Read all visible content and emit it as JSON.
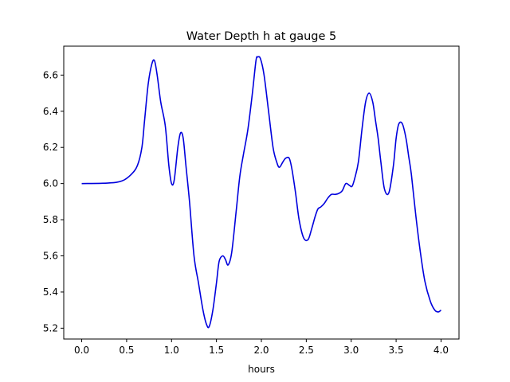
{
  "chart_data": {
    "type": "line",
    "title": "Water Depth h at gauge 5",
    "xlabel": "hours",
    "ylabel": "",
    "xlim": [
      -0.2,
      4.2
    ],
    "ylim": [
      5.14,
      6.76
    ],
    "grid": false,
    "xticks": [
      0.0,
      0.5,
      1.0,
      1.5,
      2.0,
      2.5,
      3.0,
      3.5,
      4.0
    ],
    "xtick_labels": [
      "0.0",
      "0.5",
      "1.0",
      "1.5",
      "2.0",
      "2.5",
      "3.0",
      "3.5",
      "4.0"
    ],
    "yticks": [
      5.2,
      5.4,
      5.6,
      5.8,
      6.0,
      6.2,
      6.4,
      6.6
    ],
    "ytick_labels": [
      "5.2",
      "5.4",
      "5.6",
      "5.8",
      "6.0",
      "6.2",
      "6.4",
      "6.6"
    ],
    "series": [
      {
        "color": "#0000dd",
        "x": [
          0.0,
          0.3,
          0.45,
          0.55,
          0.62,
          0.67,
          0.7,
          0.74,
          0.78,
          0.81,
          0.84,
          0.88,
          0.93,
          0.97,
          1.0,
          1.03,
          1.07,
          1.1,
          1.13,
          1.16,
          1.2,
          1.25,
          1.3,
          1.35,
          1.39,
          1.42,
          1.46,
          1.5,
          1.53,
          1.57,
          1.6,
          1.63,
          1.67,
          1.72,
          1.76,
          1.8,
          1.85,
          1.9,
          1.94,
          1.96,
          1.99,
          2.03,
          2.08,
          2.13,
          2.17,
          2.2,
          2.24,
          2.27,
          2.31,
          2.34,
          2.38,
          2.42,
          2.47,
          2.52,
          2.56,
          2.6,
          2.63,
          2.66,
          2.7,
          2.74,
          2.78,
          2.82,
          2.86,
          2.9,
          2.94,
          2.98,
          3.01,
          3.04,
          3.08,
          3.12,
          3.16,
          3.2,
          3.24,
          3.27,
          3.3,
          3.33,
          3.37,
          3.42,
          3.47,
          3.5,
          3.53,
          3.57,
          3.61,
          3.64,
          3.67,
          3.72,
          3.77,
          3.82,
          3.88,
          3.93,
          3.97,
          4.0
        ],
        "y": [
          6.0,
          6.003,
          6.015,
          6.05,
          6.1,
          6.2,
          6.35,
          6.55,
          6.66,
          6.68,
          6.6,
          6.45,
          6.32,
          6.1,
          6.0,
          6.02,
          6.2,
          6.28,
          6.25,
          6.1,
          5.9,
          5.6,
          5.45,
          5.3,
          5.22,
          5.21,
          5.3,
          5.45,
          5.57,
          5.6,
          5.58,
          5.55,
          5.62,
          5.85,
          6.04,
          6.16,
          6.3,
          6.5,
          6.68,
          6.7,
          6.69,
          6.6,
          6.4,
          6.2,
          6.12,
          6.09,
          6.12,
          6.14,
          6.14,
          6.08,
          5.95,
          5.8,
          5.7,
          5.69,
          5.75,
          5.82,
          5.86,
          5.87,
          5.89,
          5.92,
          5.94,
          5.94,
          5.945,
          5.96,
          6.0,
          5.99,
          5.985,
          6.03,
          6.12,
          6.3,
          6.45,
          6.5,
          6.45,
          6.35,
          6.25,
          6.12,
          5.97,
          5.95,
          6.1,
          6.25,
          6.33,
          6.33,
          6.25,
          6.15,
          6.05,
          5.82,
          5.62,
          5.46,
          5.35,
          5.3,
          5.29,
          5.3
        ]
      }
    ]
  }
}
